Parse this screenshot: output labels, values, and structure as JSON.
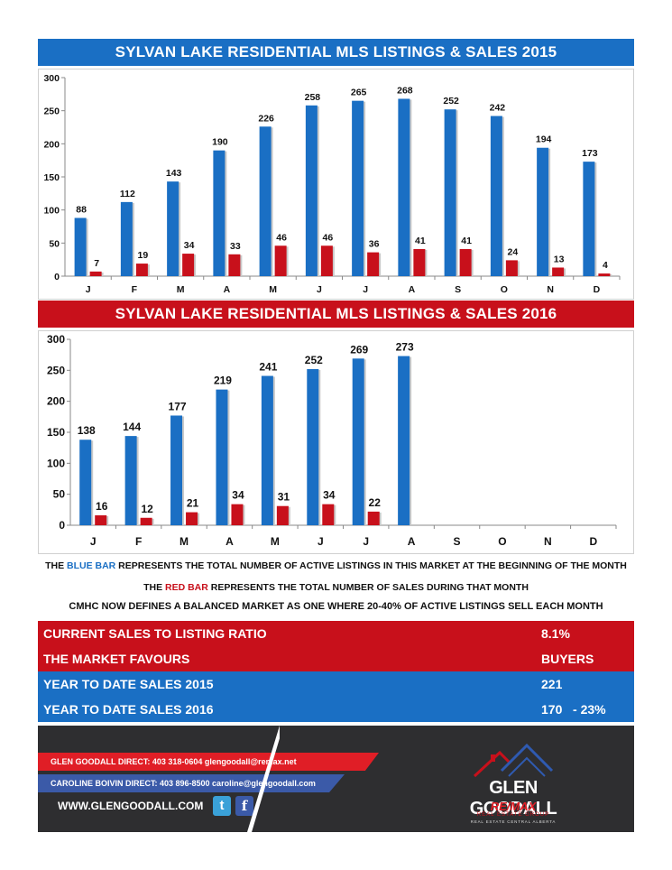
{
  "banners": {
    "chart2015": "SYLVAN LAKE RESIDENTIAL MLS LISTINGS & SALES 2015",
    "chart2016": "SYLVAN LAKE RESIDENTIAL MLS LISTINGS & SALES 2016"
  },
  "chart_data": [
    {
      "type": "bar",
      "title": "SYLVAN LAKE RESIDENTIAL MLS LISTINGS & SALES 2015",
      "categories": [
        "J",
        "F",
        "M",
        "A",
        "M",
        "J",
        "J",
        "A",
        "S",
        "O",
        "N",
        "D"
      ],
      "series": [
        {
          "values": [
            88,
            112,
            143,
            190,
            226,
            258,
            265,
            268,
            252,
            242,
            194,
            173
          ],
          "color": "#1a6fc4"
        },
        {
          "values": [
            7,
            19,
            34,
            33,
            46,
            46,
            36,
            41,
            41,
            24,
            13,
            4
          ],
          "color": "#c8101b"
        }
      ],
      "yticks": [
        0,
        50,
        100,
        150,
        200,
        250,
        300
      ],
      "ylim": [
        0,
        300
      ],
      "grid": false,
      "legend": "none"
    },
    {
      "type": "bar",
      "title": "SYLVAN LAKE RESIDENTIAL MLS LISTINGS & SALES 2016",
      "categories": [
        "J",
        "F",
        "M",
        "A",
        "M",
        "J",
        "J",
        "A",
        "S",
        "O",
        "N",
        "D"
      ],
      "series": [
        {
          "values": [
            138,
            144,
            177,
            219,
            241,
            252,
            269,
            273,
            null,
            null,
            null,
            null
          ],
          "color": "#1a6fc4"
        },
        {
          "values": [
            16,
            12,
            21,
            34,
            31,
            34,
            22,
            null,
            null,
            null,
            null,
            null
          ],
          "color": "#c8101b"
        }
      ],
      "yticks": [
        0,
        50,
        100,
        150,
        200,
        250,
        300
      ],
      "ylim": [
        0,
        300
      ],
      "grid": false,
      "legend": "none"
    }
  ],
  "legend_text": {
    "line1_pre": "THE ",
    "line1_blue": "BLUE BAR",
    "line1_post": " REPRESENTS THE TOTAL NUMBER OF ACTIVE LISTINGS IN THIS MARKET AT THE BEGINNING OF THE MONTH",
    "line2_pre": "THE ",
    "line2_red": "RED BAR",
    "line2_post": " REPRESENTS THE TOTAL NUMBER OF SALES DURING THAT MONTH",
    "line3": "CMHC NOW DEFINES A BALANCED MARKET AS ONE WHERE 20-40% OF ACTIVE LISTINGS SELL EACH MONTH"
  },
  "summary": [
    {
      "label": "CURRENT SALES TO LISTING RATIO",
      "value": "8.1%",
      "color": "red"
    },
    {
      "label": "THE MARKET FAVOURS",
      "value": "BUYERS",
      "color": "red"
    },
    {
      "label": "YEAR TO DATE SALES 2015",
      "value": "221",
      "color": "blue"
    },
    {
      "label": "YEAR TO DATE SALES 2016",
      "value": "170   - 23%",
      "color": "blue"
    }
  ],
  "footer": {
    "agent1": "GLEN GOODALL  DIRECT: 403 318-0604  glengoodall@remax.net",
    "agent2": "CAROLINE BOIVIN DIRECT: 403 896-8500 caroline@glengoodall.com",
    "website": "WWW.GLENGOODALL.COM",
    "twitter_glyph": "t",
    "facebook_glyph": "f",
    "logo_title": "GLEN GOODALL",
    "logo_brand": "RE/MAX",
    "logo_group": "REAL ESTATE GROUP",
    "logo_region": "REAL ESTATE CENTRAL ALBERTA"
  },
  "colors": {
    "blue": "#1a6fc4",
    "red": "#c8101b",
    "footer_bg": "#2e2e30"
  }
}
